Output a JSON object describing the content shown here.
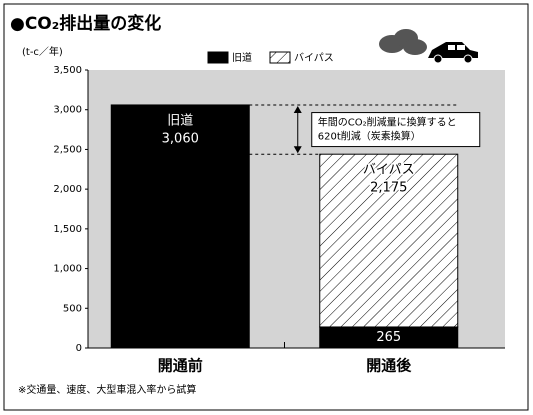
{
  "chart_data": {
    "type": "stacked_bar",
    "title": "●CO₂排出量の変化",
    "y_label": "(t-c／年)",
    "categories": [
      "開通前",
      "開通後"
    ],
    "series": [
      {
        "name": "旧道",
        "color": "#000000",
        "hatch": false,
        "values": [
          3060,
          265
        ],
        "value_labels": [
          "3,060",
          "265"
        ]
      },
      {
        "name": "バイパス",
        "color": "#ffffff",
        "hatch": true,
        "values": [
          null,
          2175
        ],
        "value_labels": [
          null,
          "2,175"
        ]
      }
    ],
    "ylim": [
      0,
      3500
    ],
    "yticks": [
      0,
      500,
      {
        "value": 1000,
        "label": "1,000"
      },
      {
        "value": 1500,
        "label": "1,500"
      },
      {
        "value": 2000,
        "label": "2,000"
      },
      {
        "value": 2500,
        "label": "2,500"
      },
      {
        "value": 3000,
        "label": "3,000"
      },
      {
        "value": 3500,
        "label": "3,500"
      }
    ],
    "plot_background": "#d4d4d4",
    "annotation": [
      "年間のCO₂削減量に換算すると",
      "620t削減（炭素換算）"
    ],
    "footnote": "※交通量、速度、大型車混入率から試算"
  }
}
